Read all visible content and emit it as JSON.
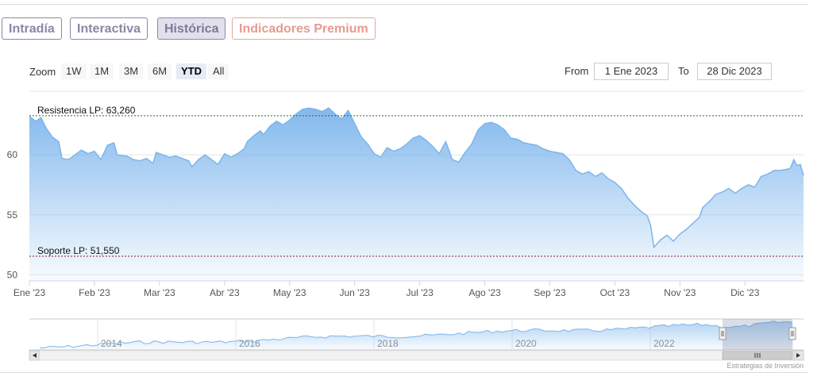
{
  "tabs": [
    {
      "label": "Intradía"
    },
    {
      "label": "Interactiva"
    },
    {
      "label": "Histórica"
    },
    {
      "label": "Indicadores Premium"
    }
  ],
  "zoom": {
    "label": "Zoom",
    "buttons": [
      "1W",
      "1M",
      "3M",
      "6M",
      "YTD",
      "All"
    ],
    "selected": "YTD"
  },
  "range": {
    "from_label": "From",
    "from_value": "1 Ene 2023",
    "to_label": "To",
    "to_value": "28 Dic 2023"
  },
  "chart_data": {
    "type": "area",
    "x_unit": "month index (0 = Ene 2023)",
    "x_ticks": [
      "Ene '23",
      "Feb '23",
      "Mar '23",
      "Abr '23",
      "May '23",
      "Jun '23",
      "Jul '23",
      "Ago '23",
      "Sep '23",
      "Oct '23",
      "Nov '23",
      "Dic '23"
    ],
    "y_ticks": [
      50,
      55,
      60
    ],
    "ylim": [
      49.5,
      65.3
    ],
    "xlim": [
      0,
      11.9
    ],
    "grid": true,
    "series": [
      {
        "color": "#7cb5ec",
        "points": [
          [
            0,
            63.2
          ],
          [
            0.1,
            62.8
          ],
          [
            0.18,
            63.1
          ],
          [
            0.25,
            62.3
          ],
          [
            0.35,
            61.5
          ],
          [
            0.45,
            61.1
          ],
          [
            0.5,
            59.7
          ],
          [
            0.6,
            59.6
          ],
          [
            0.7,
            60.0
          ],
          [
            0.8,
            60.4
          ],
          [
            0.9,
            60.1
          ],
          [
            1.0,
            60.3
          ],
          [
            1.1,
            59.6
          ],
          [
            1.2,
            60.8
          ],
          [
            1.3,
            61.0
          ],
          [
            1.35,
            60.0
          ],
          [
            1.5,
            59.9
          ],
          [
            1.6,
            59.6
          ],
          [
            1.7,
            59.5
          ],
          [
            1.8,
            59.7
          ],
          [
            1.9,
            59.3
          ],
          [
            1.95,
            60.2
          ],
          [
            2.05,
            60.0
          ],
          [
            2.15,
            59.8
          ],
          [
            2.25,
            59.9
          ],
          [
            2.35,
            59.7
          ],
          [
            2.45,
            59.5
          ],
          [
            2.5,
            59.0
          ],
          [
            2.6,
            59.6
          ],
          [
            2.7,
            60.0
          ],
          [
            2.8,
            59.6
          ],
          [
            2.9,
            59.2
          ],
          [
            3.0,
            60.1
          ],
          [
            3.1,
            59.8
          ],
          [
            3.2,
            60.1
          ],
          [
            3.3,
            60.5
          ],
          [
            3.35,
            61.1
          ],
          [
            3.45,
            61.6
          ],
          [
            3.55,
            62.0
          ],
          [
            3.6,
            61.7
          ],
          [
            3.7,
            62.4
          ],
          [
            3.8,
            62.8
          ],
          [
            3.9,
            62.5
          ],
          [
            4.0,
            62.9
          ],
          [
            4.1,
            63.4
          ],
          [
            4.2,
            63.8
          ],
          [
            4.3,
            63.9
          ],
          [
            4.4,
            63.8
          ],
          [
            4.5,
            63.6
          ],
          [
            4.6,
            63.9
          ],
          [
            4.7,
            63.4
          ],
          [
            4.8,
            63.0
          ],
          [
            4.9,
            63.7
          ],
          [
            5.0,
            62.6
          ],
          [
            5.1,
            61.5
          ],
          [
            5.2,
            60.9
          ],
          [
            5.3,
            60.1
          ],
          [
            5.4,
            59.8
          ],
          [
            5.5,
            60.6
          ],
          [
            5.6,
            60.3
          ],
          [
            5.7,
            60.5
          ],
          [
            5.8,
            60.9
          ],
          [
            5.9,
            61.4
          ],
          [
            6.0,
            61.6
          ],
          [
            6.1,
            61.2
          ],
          [
            6.2,
            60.7
          ],
          [
            6.3,
            60.1
          ],
          [
            6.4,
            61.1
          ],
          [
            6.5,
            59.6
          ],
          [
            6.6,
            59.4
          ],
          [
            6.7,
            60.2
          ],
          [
            6.8,
            60.9
          ],
          [
            6.9,
            62.1
          ],
          [
            7.0,
            62.6
          ],
          [
            7.1,
            62.7
          ],
          [
            7.2,
            62.5
          ],
          [
            7.3,
            62.1
          ],
          [
            7.4,
            61.4
          ],
          [
            7.5,
            61.3
          ],
          [
            7.6,
            61.0
          ],
          [
            7.7,
            60.9
          ],
          [
            7.8,
            60.8
          ],
          [
            7.9,
            60.5
          ],
          [
            8.0,
            60.3
          ],
          [
            8.1,
            60.2
          ],
          [
            8.2,
            60.1
          ],
          [
            8.3,
            59.6
          ],
          [
            8.4,
            58.7
          ],
          [
            8.5,
            58.4
          ],
          [
            8.6,
            58.6
          ],
          [
            8.7,
            58.2
          ],
          [
            8.8,
            58.5
          ],
          [
            8.9,
            58.0
          ],
          [
            9.0,
            57.7
          ],
          [
            9.1,
            57.2
          ],
          [
            9.2,
            56.4
          ],
          [
            9.3,
            55.8
          ],
          [
            9.4,
            55.3
          ],
          [
            9.5,
            54.9
          ],
          [
            9.55,
            54.1
          ],
          [
            9.6,
            52.3
          ],
          [
            9.7,
            52.9
          ],
          [
            9.8,
            53.3
          ],
          [
            9.9,
            52.8
          ],
          [
            10.0,
            53.4
          ],
          [
            10.1,
            53.8
          ],
          [
            10.2,
            54.3
          ],
          [
            10.3,
            54.8
          ],
          [
            10.35,
            55.6
          ],
          [
            10.45,
            56.1
          ],
          [
            10.55,
            56.7
          ],
          [
            10.65,
            56.9
          ],
          [
            10.75,
            57.2
          ],
          [
            10.85,
            56.8
          ],
          [
            10.95,
            57.2
          ],
          [
            11.05,
            57.5
          ],
          [
            11.15,
            57.3
          ],
          [
            11.25,
            58.2
          ],
          [
            11.35,
            58.4
          ],
          [
            11.45,
            58.7
          ],
          [
            11.55,
            58.7
          ],
          [
            11.65,
            58.8
          ],
          [
            11.7,
            58.9
          ],
          [
            11.75,
            59.6
          ],
          [
            11.8,
            59.1
          ],
          [
            11.85,
            59.2
          ],
          [
            11.9,
            58.3
          ]
        ]
      }
    ],
    "annotations": [
      {
        "label": "Resistencia LP: 63,260",
        "value": 63.26,
        "color": "#1f6b2e"
      },
      {
        "label": "Soporte LP: 51,550",
        "value": 51.55,
        "color": "#8b1a2a"
      }
    ],
    "navigator": {
      "labels": [
        "2014",
        "2016",
        "2018",
        "2020",
        "2022"
      ]
    }
  },
  "credit": "Estrategias de Inversión"
}
